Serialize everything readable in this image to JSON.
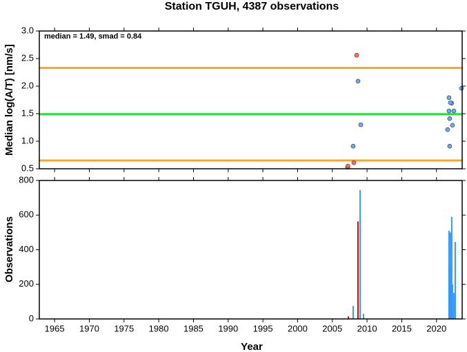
{
  "chart_data": [
    {
      "type": "scatter",
      "title": "Station TGUH, 4387 observations",
      "annotation": "median = 1.49, smad = 0.84",
      "ylabel": "Median log(A/T) [nm/s]",
      "xlim": [
        1962.8,
        2023.7
      ],
      "xticks": [
        1965,
        1970,
        1975,
        1980,
        1985,
        1990,
        1995,
        2000,
        2005,
        2010,
        2015,
        2020
      ],
      "ylim": [
        0.5,
        3.0
      ],
      "yticks": [
        0.5,
        {
          "value": 1,
          "label": "1.0"
        },
        1.5,
        {
          "value": 2,
          "label": "2.0"
        },
        2.5,
        {
          "value": 3,
          "label": "3.0"
        }
      ],
      "hlines": [
        {
          "value": 2.33,
          "color": "#f5a623"
        },
        {
          "value": 1.49,
          "color": "#22e03a"
        },
        {
          "value": 0.65,
          "color": "#f5a623"
        }
      ],
      "x": [
        2008.5,
        2008.1,
        2007.2,
        2007.25,
        2008.7,
        2008.0,
        2009.1,
        2023.6,
        2021.8,
        2022.2,
        2022.0,
        2021.8,
        2022.5,
        2021.9,
        2022.3,
        2021.6,
        2021.9
      ],
      "values": [
        2.56,
        0.61,
        0.53,
        0.55,
        2.09,
        0.91,
        1.3,
        1.96,
        1.79,
        1.69,
        1.7,
        1.55,
        1.55,
        1.41,
        1.29,
        1.21,
        0.91
      ],
      "colors": [
        "#ff6b5e",
        "#ff6b5e",
        "#ff6b5e",
        "#ff6b5e",
        "#6fa8f0",
        "#6fa8f0",
        "#6fa8f0",
        "#6fa8f0",
        "#6fa8f0",
        "#6fa8f0",
        "#6fa8f0",
        "#6fa8f0",
        "#6fa8f0",
        "#6fa8f0",
        "#6fa8f0",
        "#6fa8f0",
        "#6fa8f0"
      ]
    },
    {
      "type": "bar",
      "ylabel": "Observations",
      "xlabel": "Year",
      "xlim": [
        1962.8,
        2023.7
      ],
      "xticks": [
        1965,
        1970,
        1975,
        1980,
        1985,
        1990,
        1995,
        2000,
        2005,
        2010,
        2015,
        2020
      ],
      "ylim": [
        0,
        800
      ],
      "yticks": [
        0,
        200,
        400,
        600,
        800
      ],
      "x": [
        2007.3,
        2008.0,
        2008.7,
        2009.0,
        2009.5,
        2021.8,
        2021.9,
        2022.0,
        2022.1,
        2022.2,
        2022.3,
        2022.5,
        2022.7
      ],
      "values": [
        15,
        75,
        563,
        745,
        30,
        510,
        300,
        500,
        200,
        590,
        200,
        150,
        445
      ],
      "colors": [
        "#e00000",
        "#3399ff",
        "#e00000",
        "#3399ff",
        "#3399ff",
        "#3399ff",
        "#3399ff",
        "#3399ff",
        "#3399ff",
        "#3399ff",
        "#3399ff",
        "#3399ff",
        "#3399ff"
      ]
    }
  ]
}
